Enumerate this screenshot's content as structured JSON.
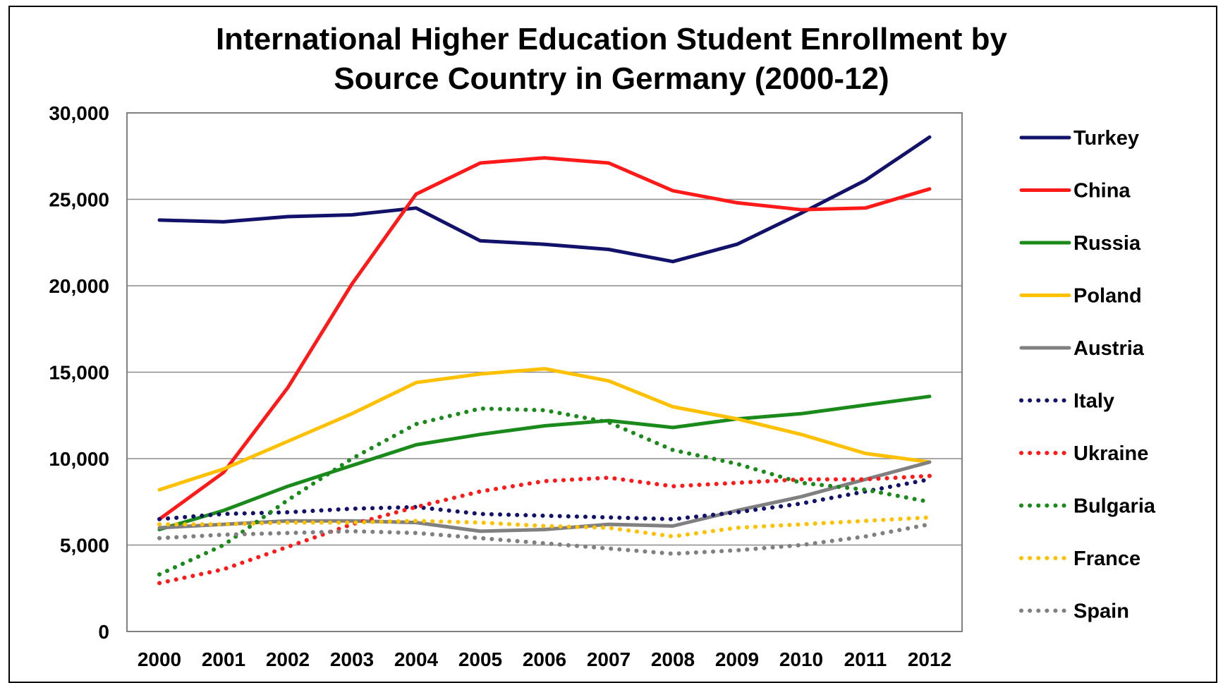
{
  "chart_data": {
    "type": "line",
    "title_lines": [
      "International Higher Education Student Enrollment by",
      "Source Country in Germany (2000-12)"
    ],
    "xlabel": "",
    "ylabel": "",
    "ylim": [
      0,
      30000
    ],
    "y_ticks": [
      0,
      5000,
      10000,
      15000,
      20000,
      25000,
      30000
    ],
    "y_tick_labels": [
      "0",
      "5,000",
      "10,000",
      "15,000",
      "20,000",
      "25,000",
      "30,000"
    ],
    "categories": [
      "2000",
      "2001",
      "2002",
      "2003",
      "2004",
      "2005",
      "2006",
      "2007",
      "2008",
      "2009",
      "2010",
      "2011",
      "2012"
    ],
    "grid": true,
    "legend_position": "right",
    "series": [
      {
        "name": "Turkey",
        "color": "#12126b",
        "style": "solid",
        "values": [
          23800,
          23700,
          24000,
          24100,
          24500,
          22600,
          22400,
          22100,
          21400,
          22400,
          24200,
          26100,
          28600
        ]
      },
      {
        "name": "China",
        "color": "#ff1a1a",
        "style": "solid",
        "values": [
          6500,
          9200,
          14100,
          20100,
          25300,
          27100,
          27400,
          27100,
          25500,
          24800,
          24400,
          24500,
          25600
        ]
      },
      {
        "name": "Russia",
        "color": "#1a8a1a",
        "style": "solid",
        "values": [
          5900,
          7000,
          8400,
          9600,
          10800,
          11400,
          11900,
          12200,
          11800,
          12300,
          12600,
          13100,
          13600
        ]
      },
      {
        "name": "Poland",
        "color": "#ffc000",
        "style": "solid",
        "values": [
          8200,
          9400,
          11000,
          12600,
          14400,
          14900,
          15200,
          14500,
          13000,
          12300,
          11400,
          10300,
          9800
        ]
      },
      {
        "name": "Austria",
        "color": "#808080",
        "style": "solid",
        "values": [
          6000,
          6200,
          6400,
          6400,
          6300,
          5800,
          5900,
          6200,
          6100,
          7000,
          7800,
          8800,
          9800
        ]
      },
      {
        "name": "Italy",
        "color": "#12126b",
        "style": "dotted",
        "values": [
          6500,
          6800,
          6900,
          7100,
          7200,
          6800,
          6700,
          6600,
          6500,
          6900,
          7400,
          8100,
          8800
        ]
      },
      {
        "name": "Ukraine",
        "color": "#ff1a1a",
        "style": "dotted",
        "values": [
          2800,
          3600,
          4900,
          6200,
          7200,
          8100,
          8700,
          8900,
          8400,
          8600,
          8800,
          8800,
          9000
        ]
      },
      {
        "name": "Bulgaria",
        "color": "#1a8a1a",
        "style": "dotted",
        "values": [
          3300,
          5000,
          7600,
          10000,
          12000,
          12900,
          12800,
          12100,
          10500,
          9700,
          8600,
          8200,
          7500
        ]
      },
      {
        "name": "France",
        "color": "#ffc000",
        "style": "dotted",
        "values": [
          6200,
          6200,
          6300,
          6300,
          6400,
          6300,
          6100,
          6000,
          5500,
          6000,
          6200,
          6400,
          6600
        ]
      },
      {
        "name": "Spain",
        "color": "#808080",
        "style": "dotted",
        "values": [
          5400,
          5600,
          5700,
          5800,
          5700,
          5400,
          5100,
          4800,
          4500,
          4700,
          5000,
          5500,
          6200
        ]
      }
    ]
  }
}
